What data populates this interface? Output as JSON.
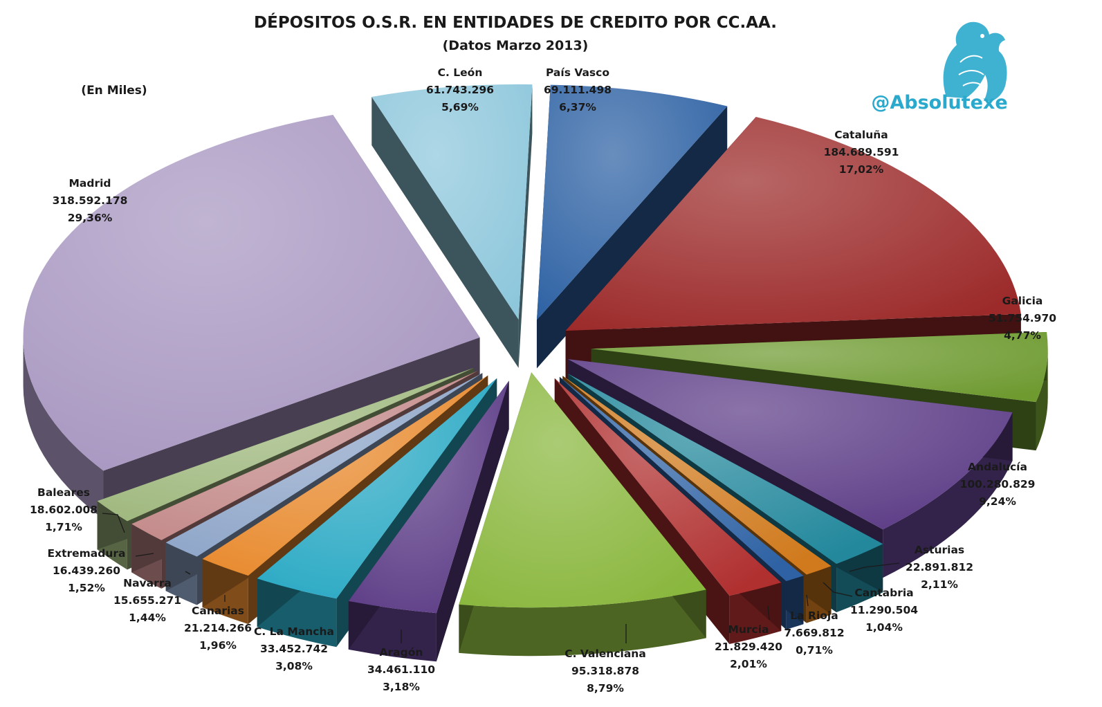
{
  "chart_data": {
    "type": "pie",
    "title": "DÉPOSITOS O.S.R. EN ENTIDADES DE CREDITO POR CC.AA.",
    "subtitle": "(Datos Marzo 2013)",
    "units_note": "(En Miles)",
    "slices": [
      {
        "name": "País Vasco",
        "value": "69.111.498",
        "value_num": 69111498,
        "pct": "6,37%",
        "color": "#2e62a4"
      },
      {
        "name": "Cataluña",
        "value": "184.689.591",
        "value_num": 184689591,
        "pct": "17,02%",
        "color": "#9c2a2a"
      },
      {
        "name": "Galicia",
        "value": "51.754.970",
        "value_num": 51754970,
        "pct": "4,77%",
        "color": "#6e9a30"
      },
      {
        "name": "Andalucía",
        "value": "100.280.829",
        "value_num": 100280829,
        "pct": "9,24%",
        "color": "#5d3d87"
      },
      {
        "name": "Asturias",
        "value": "22.891.812",
        "value_num": 22891812,
        "pct": "2,11%",
        "color": "#23889c"
      },
      {
        "name": "Cantabria",
        "value": "11.290.504",
        "value_num": 11290504,
        "pct": "1,04%",
        "color": "#d07a1d"
      },
      {
        "name": "La Rioja",
        "value": "7.669.812",
        "value_num": 7669812,
        "pct": "0,71%",
        "color": "#2e62a4"
      },
      {
        "name": "Murcia",
        "value": "21.829.420",
        "value_num": 21829420,
        "pct": "2,01%",
        "color": "#b02f2f"
      },
      {
        "name": "C. Valenciana",
        "value": "95.318.878",
        "value_num": 95318878,
        "pct": "8,79%",
        "color": "#8ab73e"
      },
      {
        "name": "Aragón",
        "value": "34.461.110",
        "value_num": 34461110,
        "pct": "3,18%",
        "color": "#5d3d87"
      },
      {
        "name": "C. La Mancha",
        "value": "33.452.742",
        "value_num": 33452742,
        "pct": "3,08%",
        "color": "#2aa9c4"
      },
      {
        "name": "Canarias",
        "value": "21.214.266",
        "value_num": 21214266,
        "pct": "1,96%",
        "color": "#e88a2e"
      },
      {
        "name": "Navarra",
        "value": "15.655.271",
        "value_num": 15655271,
        "pct": "1,44%",
        "color": "#8fa6c9"
      },
      {
        "name": "Extremadura",
        "value": "16.439.260",
        "value_num": 16439260,
        "pct": "1,52%",
        "color": "#c48a8a"
      },
      {
        "name": "Baleares",
        "value": "18.602.008",
        "value_num": 18602008,
        "pct": "1,71%",
        "color": "#9fb87e"
      },
      {
        "name": "Madrid",
        "value": "318.592.178",
        "value_num": 318592178,
        "pct": "29,36%",
        "color": "#a897c1"
      },
      {
        "name": "C. León",
        "value": "61.743.296",
        "value_num": 61743296,
        "pct": "5,69%",
        "color": "#8ec7dc"
      }
    ]
  },
  "brand": {
    "handle": "@Absolutexe",
    "logo_icon": "griffin-logo-icon",
    "color": "#2aa9cc"
  }
}
